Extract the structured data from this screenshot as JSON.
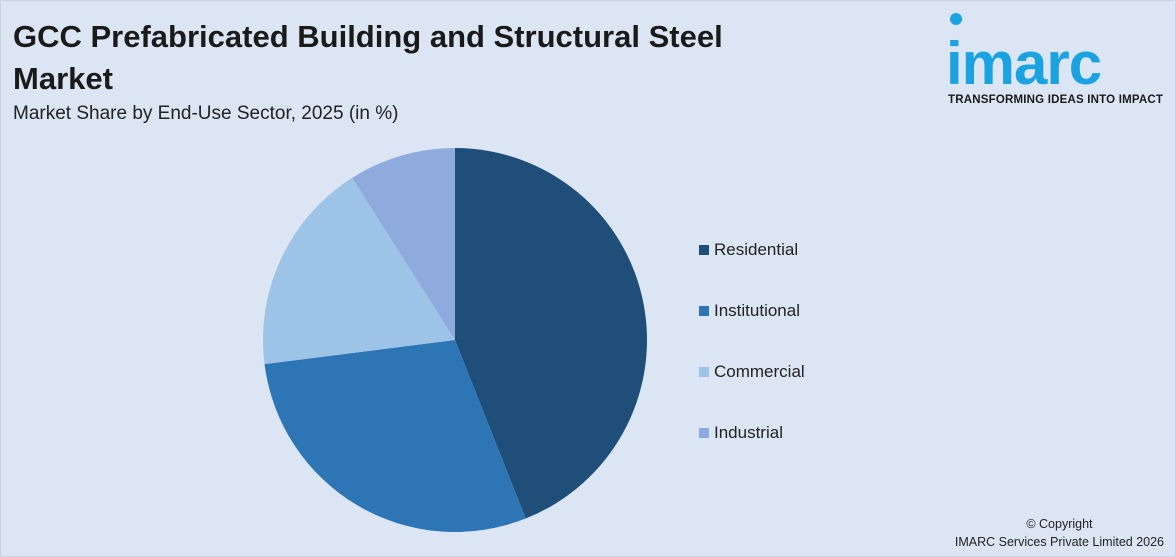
{
  "chart_data": {
    "type": "pie",
    "title": "GCC Prefabricated Building and Structural Steel Market",
    "subtitle": "Market Share by End-Use Sector, 2025 (in %)",
    "categories": [
      "Residential",
      "Institutional",
      "Commercial",
      "Industrial"
    ],
    "values": [
      44,
      29,
      18,
      9
    ],
    "colors": [
      "#1f4e79",
      "#2e75b6",
      "#9dc3e6",
      "#8faadc"
    ],
    "legend_position": "right"
  },
  "brand": {
    "name": "imarc",
    "tagline": "TRANSFORMING IDEAS INTO IMPACT",
    "color": "#1aa3e0"
  },
  "footer": {
    "copyright": "© Copyright",
    "company": "IMARC Services Private Limited 2026"
  }
}
